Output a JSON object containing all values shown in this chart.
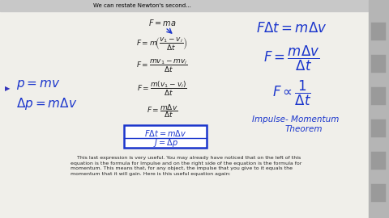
{
  "bg": "#f0efea",
  "blue": "#1a35cc",
  "black": "#222222",
  "gray_top": "#c8c8c8",
  "gray_right": "#b5b5b5",
  "bottom_text": "    This last expression is very useful. You may already have noticed that on the left of this\nequation is the formula for Impulse and on the right side of the equation is the formula for\nmomentum. This means that, for any object, the impulse that you give to it equals the\nmomentum that it will gain. Here is this useful equation again:"
}
